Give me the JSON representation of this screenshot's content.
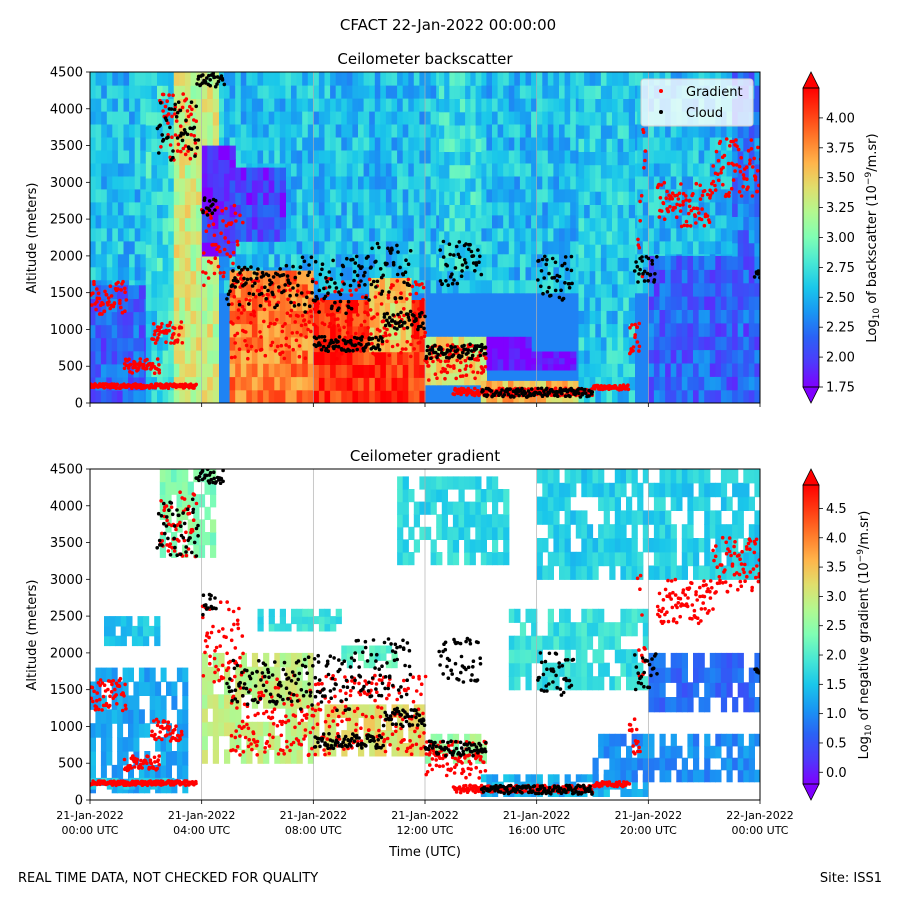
{
  "figure": {
    "suptitle": "CFACT 22-Jan-2022 00:00:00",
    "footer_left": "REAL TIME DATA, NOT CHECKED FOR QUALITY",
    "footer_right": "Site: ISS1"
  },
  "colors": {
    "gradient_marker": "#ff0000",
    "cloud_marker": "#000000",
    "white": "#ffffff",
    "colormap": [
      "#7f00ff",
      "#4e3afb",
      "#2a62f5",
      "#1996f3",
      "#1ac7ea",
      "#48e8d4",
      "#7ffeb4",
      "#b2f890",
      "#e0de6c",
      "#ffb44a",
      "#ff7a2a",
      "#ff3b12",
      "#ff0000"
    ]
  },
  "chart_data": [
    {
      "type": "heatmap",
      "title": "Ceilometer backscatter",
      "xlabel": "",
      "ylabel": "Altitude (meters)",
      "xlim_hours": [
        0,
        24
      ],
      "ylim": [
        0,
        4500
      ],
      "yticks": [
        0,
        500,
        1000,
        1500,
        2000,
        2500,
        3000,
        3500,
        4000,
        4500
      ],
      "colorbar": {
        "label_main": "Log",
        "label_sub": "10",
        "label_rest": " of backscatter (10",
        "label_sup": "−9",
        "label_end": "/m.sr)",
        "min": 1.75,
        "max": 4.25,
        "ticks": [
          "1.75",
          "2.00",
          "2.25",
          "2.50",
          "2.75",
          "3.00",
          "3.25",
          "3.50",
          "3.75",
          "4.00"
        ],
        "tick_values": [
          1.75,
          2.0,
          2.25,
          2.5,
          2.75,
          3.0,
          3.25,
          3.5,
          3.75,
          4.0
        ]
      },
      "legend": {
        "position": "top-right",
        "entries": [
          {
            "label": "Gradient",
            "color": "#ff0000"
          },
          {
            "label": "Cloud",
            "color": "#000000"
          }
        ]
      },
      "background_value": 2.3,
      "field_regions": [
        {
          "t0": 0.0,
          "t1": 24.0,
          "z0": 1500,
          "z1": 4500,
          "v": 2.55
        },
        {
          "t0": 0.0,
          "t1": 3.5,
          "z0": 0,
          "z1": 1600,
          "v": 2.15
        },
        {
          "t0": 2.0,
          "t1": 3.2,
          "z0": 0,
          "z1": 4500,
          "v": 2.7
        },
        {
          "t0": 3.0,
          "t1": 4.6,
          "z0": 0,
          "z1": 4500,
          "v": 3.3
        },
        {
          "t0": 4.0,
          "t1": 5.2,
          "z0": 2000,
          "z1": 3500,
          "v": 1.9
        },
        {
          "t0": 5.0,
          "t1": 7.0,
          "z0": 2200,
          "z1": 3200,
          "v": 2.0
        },
        {
          "t0": 5.0,
          "t1": 8.0,
          "z0": 0,
          "z1": 1800,
          "v": 3.8
        },
        {
          "t0": 8.0,
          "t1": 12.0,
          "z0": 0,
          "z1": 1400,
          "v": 4.1
        },
        {
          "t0": 10.0,
          "t1": 11.5,
          "z0": 700,
          "z1": 1700,
          "v": 3.5
        },
        {
          "t0": 12.0,
          "t1": 14.2,
          "z0": 250,
          "z1": 900,
          "v": 3.4
        },
        {
          "t0": 12.5,
          "t1": 14.0,
          "z0": 1800,
          "z1": 4500,
          "v": 2.7
        },
        {
          "t0": 14.0,
          "t1": 17.5,
          "z0": 0,
          "z1": 300,
          "v": 3.6
        },
        {
          "t0": 14.2,
          "t1": 15.8,
          "z0": 450,
          "z1": 900,
          "v": 1.7
        },
        {
          "t0": 15.8,
          "t1": 17.4,
          "z0": 450,
          "z1": 700,
          "v": 1.7
        },
        {
          "t0": 17.5,
          "t1": 19.5,
          "z0": 0,
          "z1": 4500,
          "v": 2.6
        },
        {
          "t0": 20.0,
          "t1": 24.0,
          "z0": 0,
          "z1": 2000,
          "v": 2.15
        },
        {
          "t0": 23.0,
          "t1": 24.0,
          "z0": 2000,
          "z1": 4500,
          "v": 2.25
        }
      ],
      "cloud_segments": [
        {
          "t0": 2.4,
          "t1": 3.9,
          "z0": 3300,
          "z1": 4100
        },
        {
          "t0": 3.8,
          "t1": 4.8,
          "z0": 4300,
          "z1": 4500
        },
        {
          "t0": 4.0,
          "t1": 4.5,
          "z0": 2500,
          "z1": 2800
        },
        {
          "t0": 4.9,
          "t1": 7.5,
          "z0": 1300,
          "z1": 1900
        },
        {
          "t0": 7.5,
          "t1": 9.5,
          "z0": 1200,
          "z1": 2000
        },
        {
          "t0": 8.0,
          "t1": 10.5,
          "z0": 700,
          "z1": 900
        },
        {
          "t0": 9.5,
          "t1": 11.5,
          "z0": 1400,
          "z1": 2200
        },
        {
          "t0": 10.5,
          "t1": 12.0,
          "z0": 1000,
          "z1": 1250
        },
        {
          "t0": 12.0,
          "t1": 14.2,
          "z0": 600,
          "z1": 800
        },
        {
          "t0": 12.5,
          "t1": 14.0,
          "z0": 1600,
          "z1": 2200
        },
        {
          "t0": 14.0,
          "t1": 18.0,
          "z0": 80,
          "z1": 200
        },
        {
          "t0": 16.0,
          "t1": 17.3,
          "z0": 1400,
          "z1": 2000
        },
        {
          "t0": 19.5,
          "t1": 20.3,
          "z0": 1500,
          "z1": 2000
        },
        {
          "t0": 23.8,
          "t1": 24.0,
          "z0": 1700,
          "z1": 1800
        }
      ],
      "gradient_segments": [
        {
          "t0": 0.0,
          "t1": 1.3,
          "z0": 1200,
          "z1": 1650
        },
        {
          "t0": 0.0,
          "t1": 3.8,
          "z0": 200,
          "z1": 260
        },
        {
          "t0": 1.2,
          "t1": 2.5,
          "z0": 400,
          "z1": 600
        },
        {
          "t0": 2.2,
          "t1": 3.3,
          "z0": 800,
          "z1": 1100
        },
        {
          "t0": 2.5,
          "t1": 3.8,
          "z0": 3300,
          "z1": 4200
        },
        {
          "t0": 4.0,
          "t1": 5.5,
          "z0": 1600,
          "z1": 2700
        },
        {
          "t0": 5.0,
          "t1": 12.0,
          "z0": 600,
          "z1": 1700
        },
        {
          "t0": 12.0,
          "t1": 14.2,
          "z0": 300,
          "z1": 800
        },
        {
          "t0": 13.0,
          "t1": 18.0,
          "z0": 100,
          "z1": 200
        },
        {
          "t0": 18.0,
          "t1": 19.3,
          "z0": 180,
          "z1": 250
        },
        {
          "t0": 19.3,
          "t1": 19.7,
          "z0": 600,
          "z1": 1100
        },
        {
          "t0": 19.6,
          "t1": 19.9,
          "z0": 1400,
          "z1": 3800
        },
        {
          "t0": 20.3,
          "t1": 22.3,
          "z0": 2400,
          "z1": 3000
        },
        {
          "t0": 22.3,
          "t1": 24.0,
          "z0": 2800,
          "z1": 3600
        }
      ]
    },
    {
      "type": "heatmap",
      "title": "Ceilometer gradient",
      "xlabel": "Time (UTC)",
      "ylabel": "Altitude (meters)",
      "xlim_hours": [
        0,
        24
      ],
      "ylim": [
        0,
        4500
      ],
      "yticks": [
        0,
        500,
        1000,
        1500,
        2000,
        2500,
        3000,
        3500,
        4000,
        4500
      ],
      "xticks_hours": [
        0,
        4,
        8,
        12,
        16,
        20,
        24
      ],
      "xtick_labels": [
        [
          "21-Jan-2022",
          "00:00 UTC"
        ],
        [
          "21-Jan-2022",
          "04:00 UTC"
        ],
        [
          "21-Jan-2022",
          "08:00 UTC"
        ],
        [
          "21-Jan-2022",
          "12:00 UTC"
        ],
        [
          "21-Jan-2022",
          "16:00 UTC"
        ],
        [
          "21-Jan-2022",
          "20:00 UTC"
        ],
        [
          "22-Jan-2022",
          "00:00 UTC"
        ]
      ],
      "colorbar": {
        "label_main": "Log",
        "label_sub": "10",
        "label_rest": " of negative gradient (10",
        "label_sup": "−9",
        "label_end": "/m.sr)",
        "min": -0.2,
        "max": 4.9,
        "ticks": [
          "0.0",
          "0.5",
          "1.0",
          "1.5",
          "2.0",
          "2.5",
          "3.0",
          "3.5",
          "4.0",
          "4.5"
        ],
        "tick_values": [
          0.0,
          0.5,
          1.0,
          1.5,
          2.0,
          2.5,
          3.0,
          3.5,
          4.0,
          4.5
        ]
      },
      "background_value": null,
      "field_regions": [
        {
          "t0": 0.0,
          "t1": 3.5,
          "z0": 100,
          "z1": 1800,
          "v": 1.2
        },
        {
          "t0": 0.0,
          "t1": 3.0,
          "z0": 150,
          "z1": 300,
          "v": 1.6
        },
        {
          "t0": 0.5,
          "t1": 2.5,
          "z0": 2100,
          "z1": 2500,
          "v": 1.5
        },
        {
          "t0": 2.5,
          "t1": 4.5,
          "z0": 3300,
          "z1": 4500,
          "v": 2.4
        },
        {
          "t0": 4.0,
          "t1": 8.0,
          "z0": 500,
          "z1": 2000,
          "v": 2.9
        },
        {
          "t0": 6.0,
          "t1": 9.0,
          "z0": 2300,
          "z1": 2600,
          "v": 1.8
        },
        {
          "t0": 8.0,
          "t1": 12.0,
          "z0": 600,
          "z1": 1300,
          "v": 3.2
        },
        {
          "t0": 9.0,
          "t1": 11.0,
          "z0": 1800,
          "z1": 2100,
          "v": 2.1
        },
        {
          "t0": 11.0,
          "t1": 15.0,
          "z0": 3200,
          "z1": 4400,
          "v": 1.7
        },
        {
          "t0": 12.0,
          "t1": 14.2,
          "z0": 500,
          "z1": 900,
          "v": 2.6
        },
        {
          "t0": 14.0,
          "t1": 20.0,
          "z0": 50,
          "z1": 350,
          "v": 1.3
        },
        {
          "t0": 15.0,
          "t1": 20.0,
          "z0": 1500,
          "z1": 2600,
          "v": 1.8
        },
        {
          "t0": 16.0,
          "t1": 24.0,
          "z0": 3000,
          "z1": 4500,
          "v": 1.6
        },
        {
          "t0": 18.0,
          "t1": 24.0,
          "z0": 250,
          "z1": 900,
          "v": 1.0
        },
        {
          "t0": 20.0,
          "t1": 24.0,
          "z0": 1200,
          "z1": 2000,
          "v": 0.7
        }
      ],
      "cloud_segments": [
        {
          "t0": 2.4,
          "t1": 3.9,
          "z0": 3300,
          "z1": 4100
        },
        {
          "t0": 3.8,
          "t1": 4.8,
          "z0": 4300,
          "z1": 4500
        },
        {
          "t0": 4.0,
          "t1": 4.5,
          "z0": 2500,
          "z1": 2800
        },
        {
          "t0": 4.9,
          "t1": 7.5,
          "z0": 1300,
          "z1": 1900
        },
        {
          "t0": 7.5,
          "t1": 9.5,
          "z0": 1200,
          "z1": 2000
        },
        {
          "t0": 8.0,
          "t1": 10.5,
          "z0": 700,
          "z1": 900
        },
        {
          "t0": 9.5,
          "t1": 11.5,
          "z0": 1400,
          "z1": 2200
        },
        {
          "t0": 10.5,
          "t1": 12.0,
          "z0": 1000,
          "z1": 1250
        },
        {
          "t0": 12.0,
          "t1": 14.2,
          "z0": 600,
          "z1": 800
        },
        {
          "t0": 12.5,
          "t1": 14.0,
          "z0": 1600,
          "z1": 2200
        },
        {
          "t0": 14.0,
          "t1": 18.0,
          "z0": 80,
          "z1": 200
        },
        {
          "t0": 16.0,
          "t1": 17.3,
          "z0": 1400,
          "z1": 2000
        },
        {
          "t0": 19.5,
          "t1": 20.3,
          "z0": 1500,
          "z1": 2000
        },
        {
          "t0": 23.8,
          "t1": 24.0,
          "z0": 1700,
          "z1": 1800
        }
      ],
      "gradient_segments": [
        {
          "t0": 0.0,
          "t1": 1.3,
          "z0": 1200,
          "z1": 1650
        },
        {
          "t0": 0.0,
          "t1": 3.8,
          "z0": 200,
          "z1": 260
        },
        {
          "t0": 1.2,
          "t1": 2.5,
          "z0": 400,
          "z1": 600
        },
        {
          "t0": 2.2,
          "t1": 3.3,
          "z0": 800,
          "z1": 1100
        },
        {
          "t0": 2.5,
          "t1": 3.8,
          "z0": 3300,
          "z1": 4200
        },
        {
          "t0": 4.0,
          "t1": 5.5,
          "z0": 1600,
          "z1": 2700
        },
        {
          "t0": 5.0,
          "t1": 12.0,
          "z0": 600,
          "z1": 1700
        },
        {
          "t0": 12.0,
          "t1": 14.2,
          "z0": 300,
          "z1": 800
        },
        {
          "t0": 13.0,
          "t1": 18.0,
          "z0": 100,
          "z1": 200
        },
        {
          "t0": 18.0,
          "t1": 19.3,
          "z0": 180,
          "z1": 250
        },
        {
          "t0": 19.3,
          "t1": 19.7,
          "z0": 600,
          "z1": 1100
        },
        {
          "t0": 19.6,
          "t1": 19.9,
          "z0": 1400,
          "z1": 3800
        },
        {
          "t0": 20.3,
          "t1": 22.3,
          "z0": 2400,
          "z1": 3000
        },
        {
          "t0": 22.3,
          "t1": 24.0,
          "z0": 2800,
          "z1": 3600
        }
      ]
    }
  ]
}
